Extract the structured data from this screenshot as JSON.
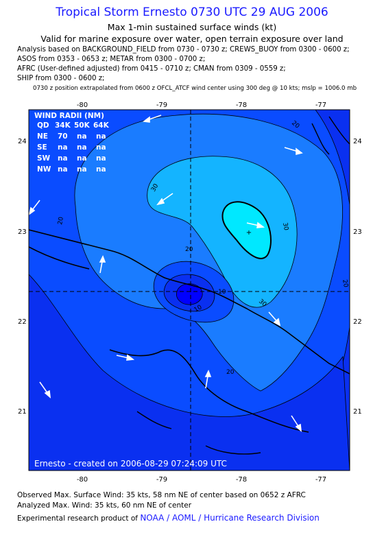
{
  "header": {
    "title": "Tropical Storm Ernesto 0730 UTC 29 AUG 2006",
    "subtitle1": "Max 1-min sustained surface winds (kt)",
    "subtitle2": "Valid for marine exposure over water, open terrain exposure over land"
  },
  "analysis_lines": [
    "Analysis based on  BACKGROUND_FIELD from 0730 - 0730 z;  CREWS_BUOY from 0300 - 0600 z;",
    "ASOS from 0353 - 0653 z;  METAR from 0300 - 0700 z;",
    "AFRC (User-defined adjusted) from 0415 - 0710 z;  CMAN from 0309 - 0559 z;",
    "SHIP from 0300 - 0600 z;"
  ],
  "position_note": "0730 z position extrapolated from 0600 z OFCL_ATCF wind center using 300 deg @ 10 kts; mslp = 1006.0 mb",
  "map": {
    "lon_ticks": [
      "-80",
      "-79",
      "-78",
      "-77"
    ],
    "lat_ticks": [
      "24",
      "23",
      "22",
      "21"
    ],
    "contour_labels": [
      "20",
      "30",
      "30",
      "20",
      "20",
      "20",
      "10",
      "20",
      "30",
      "10",
      "20"
    ],
    "credit": "Ernesto - created on 2006-08-29 07:24:09 UTC",
    "colors": {
      "ring_0_10": "#0000ff",
      "ring_10_20": "#0a4cff",
      "ring_20_30": "#1a7cff",
      "ring_30_35": "#14b4ff",
      "ring_35_plus": "#00e8ff",
      "background": "#0a30f0"
    }
  },
  "wind_radii": {
    "title": "WIND RADII (NM)",
    "header": [
      "QD",
      "34K",
      "50K",
      "64K"
    ],
    "rows": [
      [
        "NE",
        "70",
        "na",
        "na"
      ],
      [
        "SE",
        "na",
        "na",
        "na"
      ],
      [
        "SW",
        "na",
        "na",
        "na"
      ],
      [
        "NW",
        "na",
        "na",
        "na"
      ]
    ]
  },
  "footer": {
    "observed": "Observed Max. Surface Wind: 35 kts, 58 nm NE of center based on 0652 z AFRC",
    "analyzed": "Analyzed Max. Wind: 35 kts, 60 nm NE of center",
    "product_prefix": "Experimental research product of",
    "org": "NOAA / AOML / Hurricane Research Division"
  }
}
